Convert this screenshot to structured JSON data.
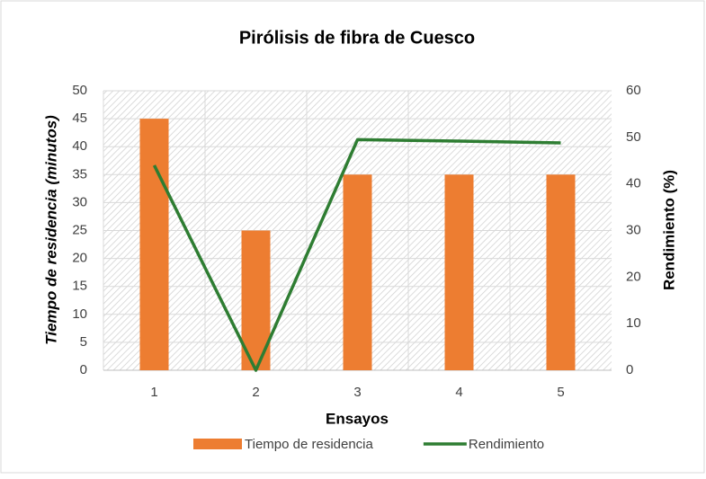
{
  "chart_data": {
    "type": "bar_line",
    "title": "Pirólisis de fibra de Cuesco",
    "x_label": "Ensayos",
    "y_label": "Tiempo de residencia (minutos)",
    "y2_label": "Rendimiento (%)",
    "categories": [
      "1",
      "2",
      "3",
      "4",
      "5"
    ],
    "series": [
      {
        "name": "Tiempo de residencia",
        "type": "bar",
        "color": "#ed7d31",
        "values": [
          45,
          25,
          35,
          35,
          35
        ]
      },
      {
        "name": "Rendimiento",
        "type": "line",
        "axis": "y2",
        "color": "#2e7d32",
        "values": [
          44,
          0,
          49.5,
          49.2,
          48.8
        ]
      }
    ],
    "ylim": [
      0,
      50
    ],
    "yticks": [
      0,
      5,
      10,
      15,
      20,
      25,
      30,
      35,
      40,
      45,
      50
    ],
    "y2lim": [
      0,
      60
    ],
    "y2ticks": [
      0,
      10,
      20,
      30,
      40,
      50,
      60
    ],
    "grid": true,
    "legend": "bottom"
  }
}
